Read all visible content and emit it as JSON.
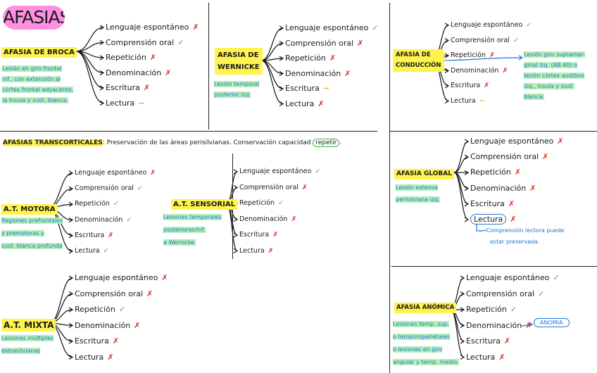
{
  "title": "AFASIAS",
  "section_transcortical": {
    "heading": "AFASIAS TRANSCORTICALES",
    "text": ": Preservación de las áreas perisilvianas. Conservación capacidad",
    "circled": "repetir",
    "end": "."
  },
  "cards": {
    "broca": {
      "name": "AFASIA DE BROCA",
      "note": [
        "Lesión en giro frontal",
        "inf., con extensión al",
        "córtex frontal adyacente,",
        "la ínsula y sust. blanca."
      ],
      "items": [
        {
          "label": "Lenguaje espontáneo",
          "mark": "✗"
        },
        {
          "label": "Comprensión oral",
          "mark": "✓"
        },
        {
          "label": "Repetición",
          "mark": "✗"
        },
        {
          "label": "Denominación",
          "mark": "✗"
        },
        {
          "label": "Escritura",
          "mark": "✗"
        },
        {
          "label": "Lectura",
          "mark": "∼"
        }
      ]
    },
    "wernicke": {
      "name": [
        "AFASIA DE",
        "WERNICKE"
      ],
      "note": [
        "Lesión temporal",
        "posterior izq."
      ],
      "items": [
        {
          "label": "Lenguaje espontáneo",
          "mark": "✓"
        },
        {
          "label": "Comprensión oral",
          "mark": "✗"
        },
        {
          "label": "Repetición",
          "mark": "✗"
        },
        {
          "label": "Denominación",
          "mark": "✗"
        },
        {
          "label": "Escritura",
          "mark": "∼"
        },
        {
          "label": "Lectura",
          "mark": "✗"
        }
      ]
    },
    "conduccion": {
      "name": [
        "AFASIA DE",
        "CONDUCCIÓN"
      ],
      "note": [
        "Lesión giro supramar-",
        "ginal izq. (AB 40) o",
        "lesión córtex auditivo",
        "izq., ínsula y sust.",
        "blanca."
      ],
      "items": [
        {
          "label": "Lenguaje espontáneo",
          "mark": "✓"
        },
        {
          "label": "Comprensión oral",
          "mark": "✓"
        },
        {
          "label": "Repetición",
          "mark": "✗"
        },
        {
          "label": "Denominación",
          "mark": "✗"
        },
        {
          "label": "Escritura",
          "mark": "✗"
        },
        {
          "label": "Lectura",
          "mark": "∼"
        }
      ]
    },
    "motora": {
      "name": "A.T. MOTORA",
      "note": [
        "Regiones prefrontales",
        "y premotoras y",
        "sust. blanca profunda"
      ],
      "items": [
        {
          "label": "Lenguaje espontáneo",
          "mark": "✗"
        },
        {
          "label": "Comprensión oral",
          "mark": "✓"
        },
        {
          "label": "Repetición",
          "mark": "✓"
        },
        {
          "label": "Denominación",
          "mark": "✓"
        },
        {
          "label": "Escritura",
          "mark": "✗"
        },
        {
          "label": "Lectura",
          "mark": "✓"
        }
      ]
    },
    "sensorial": {
      "name": "A.T. SENSORIAL",
      "note": [
        "Lesiones temporales",
        "posteriores/inf.",
        "a Wernicke."
      ],
      "items": [
        {
          "label": "Lenguaje espontáneo",
          "mark": "✓"
        },
        {
          "label": "Comprensión oral",
          "mark": "✗"
        },
        {
          "label": "Repetición",
          "mark": "✓"
        },
        {
          "label": "Denominación",
          "mark": "✗"
        },
        {
          "label": "Escritura",
          "mark": "✗"
        },
        {
          "label": "Lectura",
          "mark": "✗"
        }
      ]
    },
    "mixta": {
      "name": "A.T. MIXTA",
      "note": [
        "Lesiones múltiples",
        "extrasilvianas"
      ],
      "items": [
        {
          "label": "Lenguaje espontáneo",
          "mark": "✗"
        },
        {
          "label": "Comprensión oral",
          "mark": "✗"
        },
        {
          "label": "Repetición",
          "mark": "✓"
        },
        {
          "label": "Denominación",
          "mark": "✗"
        },
        {
          "label": "Escritura",
          "mark": "✗"
        },
        {
          "label": "Lectura",
          "mark": "✗"
        }
      ]
    },
    "global": {
      "name": "AFASIA GLOBAL",
      "note": [
        "Lesión extensa",
        "perisilviana izq."
      ],
      "items": [
        {
          "label": "Lenguaje espontáneo",
          "mark": "✗"
        },
        {
          "label": "Comprensión oral",
          "mark": "✗"
        },
        {
          "label": "Repetición",
          "mark": "✗"
        },
        {
          "label": "Denominación",
          "mark": "✗"
        },
        {
          "label": "Escritura",
          "mark": "✗"
        },
        {
          "label": "Lectura",
          "mark": "✗"
        }
      ],
      "extra": [
        "→Comprensión lectora puede",
        "estar preservada."
      ]
    },
    "anomica": {
      "name": "AFASIA ANÓMICA",
      "note": [
        "Lesiones temp. sup.",
        "o temporoparietales",
        "o lesiones en giro",
        "angular y temp. medio."
      ],
      "items": [
        {
          "label": "Lenguaje espontáneo",
          "mark": "✓"
        },
        {
          "label": "Comprensión oral",
          "mark": "✓"
        },
        {
          "label": "Repetición",
          "mark": "✓"
        },
        {
          "label": "Denominación",
          "mark": "✗"
        },
        {
          "label": "Escritura",
          "mark": "✗"
        },
        {
          "label": "Lectura",
          "mark": "✗"
        }
      ],
      "tag": "ANOMIA"
    }
  },
  "colors": {
    "ok": "#3cbb34",
    "no": "#e0241b",
    "partial": "#f0a020",
    "highlight": "#fff34d",
    "pill": "#ff8fe0",
    "note": "#1f74d6",
    "note_bg": "#b6f0b6"
  }
}
